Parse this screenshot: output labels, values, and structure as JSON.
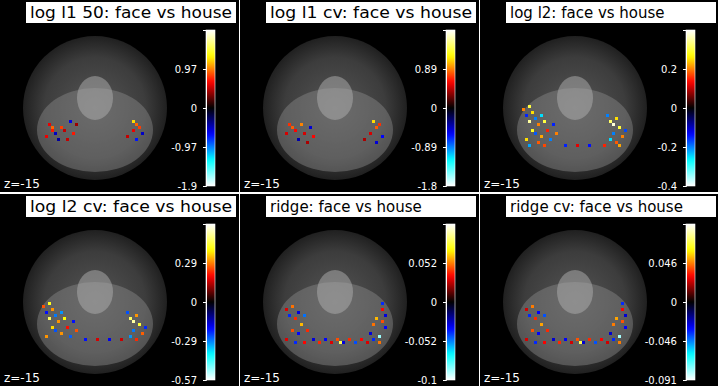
{
  "chart_data": [
    {
      "type": "heatmap",
      "title": "log l1 50: face vs house",
      "annotation": "z=-15",
      "colorbar_lim": [
        -1.94,
        1.94
      ],
      "colorbar_ticks": [
        0.97,
        0,
        -0.97,
        {
          "value": -1.94,
          "label": "-1.9"
        }
      ],
      "cells": [
        [
          16,
          41,
          0.6
        ],
        [
          17,
          42,
          0.9
        ],
        [
          17,
          43,
          0.7
        ],
        [
          18,
          44,
          -0.5
        ],
        [
          20,
          42,
          0.8
        ],
        [
          21,
          43,
          0.5
        ],
        [
          23,
          40,
          -0.6
        ],
        [
          24,
          44,
          0.7
        ],
        [
          25,
          41,
          0.4
        ],
        [
          19,
          46,
          -0.4
        ],
        [
          15,
          45,
          0.6
        ],
        [
          22,
          46,
          0.5
        ],
        [
          44,
          40,
          1.2
        ],
        [
          45,
          41,
          0.9
        ],
        [
          46,
          42,
          0.8
        ],
        [
          44,
          43,
          0.6
        ],
        [
          47,
          44,
          -0.5
        ],
        [
          42,
          45,
          0.5
        ],
        [
          45,
          46,
          -0.7
        ]
      ]
    },
    {
      "type": "heatmap",
      "title": "log l1 cv: face vs house",
      "annotation": "z=-15",
      "colorbar_lim": [
        -1.78,
        1.78
      ],
      "colorbar_ticks": [
        0.89,
        0,
        -0.89,
        {
          "value": -1.78,
          "label": "-1.8"
        }
      ],
      "cells": [
        [
          16,
          41,
          0.7
        ],
        [
          17,
          42,
          0.8
        ],
        [
          18,
          43,
          0.6
        ],
        [
          20,
          41,
          0.9
        ],
        [
          21,
          44,
          0.5
        ],
        [
          23,
          42,
          -0.5
        ],
        [
          24,
          45,
          0.6
        ],
        [
          19,
          46,
          -0.4
        ],
        [
          15,
          44,
          0.5
        ],
        [
          22,
          47,
          0.4
        ],
        [
          44,
          40,
          1.1
        ],
        [
          45,
          42,
          0.8
        ],
        [
          46,
          41,
          0.7
        ],
        [
          43,
          44,
          0.5
        ],
        [
          47,
          45,
          -0.6
        ],
        [
          45,
          47,
          -0.5
        ],
        [
          41,
          46,
          0.4
        ]
      ]
    },
    {
      "type": "heatmap",
      "title": "log l2: face vs house",
      "annotation": "z=-15",
      "colorbar_lim": [
        -0.4,
        0.4
      ],
      "colorbar_ticks": [
        0.2,
        0,
        -0.2,
        -0.4
      ],
      "cells": [
        [
          14,
          36,
          0.2
        ],
        [
          15,
          38,
          -0.15
        ],
        [
          16,
          35,
          0.3
        ],
        [
          17,
          37,
          0.25
        ],
        [
          18,
          39,
          -0.2
        ],
        [
          16,
          40,
          0.35
        ],
        [
          19,
          41,
          0.2
        ],
        [
          20,
          38,
          -0.25
        ],
        [
          21,
          40,
          0.3
        ],
        [
          17,
          43,
          0.28
        ],
        [
          18,
          44,
          -0.18
        ],
        [
          20,
          45,
          0.22
        ],
        [
          22,
          43,
          0.15
        ],
        [
          23,
          46,
          -0.2
        ],
        [
          15,
          46,
          0.25
        ],
        [
          19,
          47,
          0.18
        ],
        [
          24,
          41,
          -0.15
        ],
        [
          25,
          44,
          0.2
        ],
        [
          16,
          48,
          -0.22
        ],
        [
          21,
          48,
          0.17
        ],
        [
          42,
          38,
          -0.2
        ],
        [
          43,
          40,
          0.32
        ],
        [
          44,
          41,
          0.38
        ],
        [
          45,
          39,
          0.25
        ],
        [
          46,
          42,
          0.3
        ],
        [
          44,
          44,
          -0.2
        ],
        [
          47,
          45,
          0.2
        ],
        [
          43,
          46,
          -0.25
        ],
        [
          45,
          47,
          0.18
        ],
        [
          41,
          48,
          0.15
        ],
        [
          48,
          43,
          -0.17
        ],
        [
          46,
          48,
          0.22
        ],
        [
          28,
          48,
          -0.15
        ],
        [
          32,
          48,
          0.12
        ],
        [
          36,
          48,
          -0.14
        ]
      ]
    },
    {
      "type": "heatmap",
      "title": "log l2 cv: face vs house",
      "annotation": "z=-15",
      "colorbar_lim": [
        -0.57,
        0.57
      ],
      "colorbar_ticks": [
        {
          "value": 0.285,
          "label": "0.29"
        },
        0,
        {
          "value": -0.285,
          "label": "-0.29"
        },
        -0.57
      ],
      "cells": [
        [
          14,
          37,
          0.25
        ],
        [
          15,
          39,
          -0.2
        ],
        [
          16,
          36,
          0.4
        ],
        [
          17,
          38,
          0.3
        ],
        [
          18,
          40,
          -0.28
        ],
        [
          16,
          41,
          0.45
        ],
        [
          19,
          42,
          0.3
        ],
        [
          20,
          39,
          -0.3
        ],
        [
          21,
          41,
          0.38
        ],
        [
          17,
          44,
          0.35
        ],
        [
          18,
          45,
          -0.25
        ],
        [
          20,
          46,
          0.3
        ],
        [
          22,
          44,
          0.2
        ],
        [
          23,
          47,
          -0.26
        ],
        [
          15,
          47,
          0.3
        ],
        [
          24,
          42,
          -0.2
        ],
        [
          25,
          45,
          0.25
        ],
        [
          42,
          39,
          -0.25
        ],
        [
          43,
          41,
          0.45
        ],
        [
          44,
          42,
          0.5
        ],
        [
          45,
          40,
          0.3
        ],
        [
          46,
          43,
          0.42
        ],
        [
          44,
          45,
          -0.28
        ],
        [
          47,
          46,
          0.26
        ],
        [
          43,
          47,
          -0.3
        ],
        [
          45,
          48,
          0.22
        ],
        [
          48,
          44,
          -0.22
        ],
        [
          28,
          48,
          -0.2
        ],
        [
          32,
          48,
          0.16
        ],
        [
          36,
          48,
          -0.18
        ],
        [
          40,
          48,
          0.15
        ]
      ]
    },
    {
      "type": "heatmap",
      "title": "ridge: face vs house",
      "annotation": "z=-15",
      "colorbar_lim": [
        -0.104,
        0.104
      ],
      "colorbar_ticks": [
        0.052,
        0,
        -0.052,
        {
          "value": -0.104,
          "label": "-0.1"
        }
      ],
      "cells": [
        [
          15,
          38,
          0.03
        ],
        [
          16,
          40,
          -0.04
        ],
        [
          17,
          37,
          0.05
        ],
        [
          18,
          41,
          0.04
        ],
        [
          19,
          39,
          -0.03
        ],
        [
          20,
          43,
          0.06
        ],
        [
          21,
          40,
          -0.05
        ],
        [
          17,
          45,
          0.045
        ],
        [
          19,
          46,
          -0.035
        ],
        [
          22,
          45,
          0.04
        ],
        [
          15,
          48,
          0.03
        ],
        [
          18,
          49,
          -0.04
        ],
        [
          21,
          49,
          0.035
        ],
        [
          24,
          48,
          -0.03
        ],
        [
          26,
          49,
          0.04
        ],
        [
          28,
          48,
          -0.035
        ],
        [
          30,
          49,
          0.03
        ],
        [
          32,
          48,
          0.045
        ],
        [
          34,
          49,
          -0.03
        ],
        [
          36,
          48,
          0.04
        ],
        [
          38,
          49,
          -0.045
        ],
        [
          40,
          48,
          0.035
        ],
        [
          42,
          49,
          0.03
        ],
        [
          44,
          48,
          -0.04
        ],
        [
          46,
          49,
          0.05
        ],
        [
          47,
          36,
          -0.04
        ],
        [
          47,
          38,
          0.035
        ],
        [
          48,
          40,
          -0.03
        ],
        [
          47,
          42,
          0.045
        ],
        [
          48,
          44,
          -0.035
        ],
        [
          45,
          41,
          0.06
        ],
        [
          44,
          43,
          0.05
        ],
        [
          43,
          46,
          -0.03
        ],
        [
          33,
          49,
          0.08
        ],
        [
          46,
          47,
          -0.09
        ]
      ]
    },
    {
      "type": "heatmap",
      "title": "ridge cv: face vs house",
      "annotation": "z=-15",
      "colorbar_lim": [
        -0.091,
        0.091
      ],
      "colorbar_ticks": [
        {
          "value": 0.0455,
          "label": "0.046"
        },
        0,
        {
          "value": -0.0455,
          "label": "-0.046"
        },
        -0.091
      ],
      "cells": [
        [
          15,
          38,
          0.025
        ],
        [
          16,
          40,
          -0.035
        ],
        [
          17,
          37,
          0.045
        ],
        [
          18,
          41,
          0.035
        ],
        [
          19,
          39,
          -0.03
        ],
        [
          20,
          43,
          0.05
        ],
        [
          21,
          40,
          -0.04
        ],
        [
          17,
          45,
          0.04
        ],
        [
          19,
          46,
          -0.03
        ],
        [
          22,
          45,
          0.035
        ],
        [
          15,
          48,
          0.025
        ],
        [
          18,
          49,
          -0.035
        ],
        [
          21,
          49,
          0.03
        ],
        [
          24,
          48,
          -0.025
        ],
        [
          26,
          49,
          0.035
        ],
        [
          28,
          48,
          -0.03
        ],
        [
          30,
          49,
          0.025
        ],
        [
          32,
          48,
          0.04
        ],
        [
          34,
          49,
          -0.025
        ],
        [
          36,
          48,
          0.035
        ],
        [
          38,
          49,
          -0.04
        ],
        [
          40,
          48,
          0.03
        ],
        [
          42,
          49,
          0.025
        ],
        [
          44,
          48,
          -0.035
        ],
        [
          46,
          49,
          0.045
        ],
        [
          47,
          36,
          -0.035
        ],
        [
          47,
          38,
          0.03
        ],
        [
          48,
          40,
          -0.025
        ],
        [
          47,
          42,
          0.04
        ],
        [
          48,
          44,
          -0.03
        ],
        [
          45,
          41,
          0.05
        ],
        [
          44,
          43,
          0.045
        ],
        [
          43,
          46,
          -0.025
        ],
        [
          33,
          49,
          0.07
        ],
        [
          46,
          47,
          -0.08
        ]
      ]
    }
  ]
}
